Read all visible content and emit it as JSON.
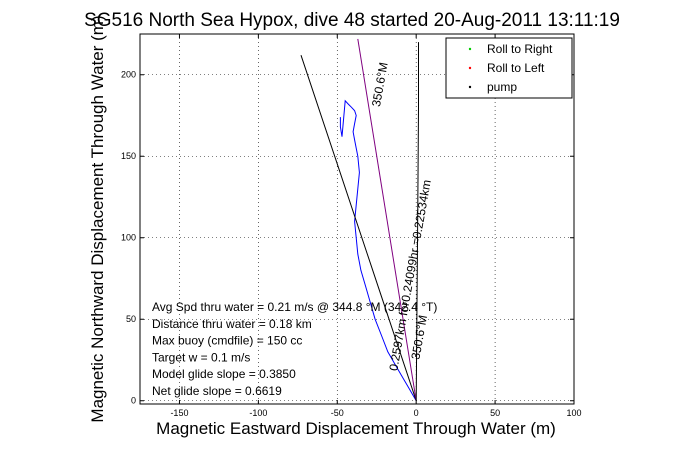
{
  "chart_data": {
    "type": "line",
    "title": "SG516 North Sea Hypox, dive 48 started 20-Aug-2011 13:11:19",
    "xlabel": "Magnetic Eastward Displacement Through Water (m)",
    "ylabel": "Magnetic Northward Displacement Through Water (m)",
    "xlim": [
      -175,
      100
    ],
    "ylim": [
      -2,
      225
    ],
    "xticks": [
      -150,
      -100,
      -50,
      0,
      50,
      100
    ],
    "yticks": [
      0,
      50,
      100,
      150,
      200
    ],
    "grid": true,
    "legend_position": "top-right",
    "legend": [
      {
        "label": "Roll to Right",
        "color": "#00cc00"
      },
      {
        "label": "Roll to Left",
        "color": "#ff0000"
      },
      {
        "label": "pump",
        "color": "#000000"
      }
    ],
    "series": [
      {
        "color": "#0000ff",
        "x": [
          0,
          -6,
          -12,
          -18,
          -22,
          -26,
          -29,
          -32,
          -35,
          -37,
          -38,
          -39,
          -38,
          -37,
          -36,
          -37,
          -38,
          -39,
          -40,
          -39,
          -38,
          -39,
          -41,
          -43,
          -45,
          -47,
          -48,
          -48
        ],
        "y": [
          0,
          10,
          20,
          30,
          40,
          50,
          60,
          70,
          80,
          90,
          100,
          110,
          120,
          130,
          140,
          150,
          155,
          160,
          165,
          170,
          175,
          178,
          180,
          182,
          184,
          162,
          168,
          174
        ]
      },
      {
        "color": "#000000",
        "x": [
          0,
          -73
        ],
        "y": [
          0,
          212
        ]
      },
      {
        "color": "#800080",
        "x": [
          0,
          -37
        ],
        "y": [
          0,
          222
        ]
      },
      {
        "color": "#000000",
        "x": [
          0,
          0.5,
          1,
          1.5,
          1.5
        ],
        "y": [
          0,
          60,
          120,
          180,
          220
        ]
      }
    ],
    "annotations": [
      {
        "text": "350.6°M",
        "x": -23,
        "y": 180
      },
      {
        "text": "0.2597km for0.24099hr =0.22534km",
        "x": -12,
        "y": 18
      },
      {
        "text": "350.6°M",
        "x": 2,
        "y": 25
      }
    ],
    "stats": [
      "Avg Spd thru water =  0.21 m/s @ 344.8   °M (342.4 °T)",
      "Distance thru water =  0.18 km",
      "Max buoy (cmdfile) = 150 cc",
      "Target w = 0.1 m/s",
      "Model glide slope = 0.3850",
      "Net glide slope = 0.6619"
    ]
  }
}
